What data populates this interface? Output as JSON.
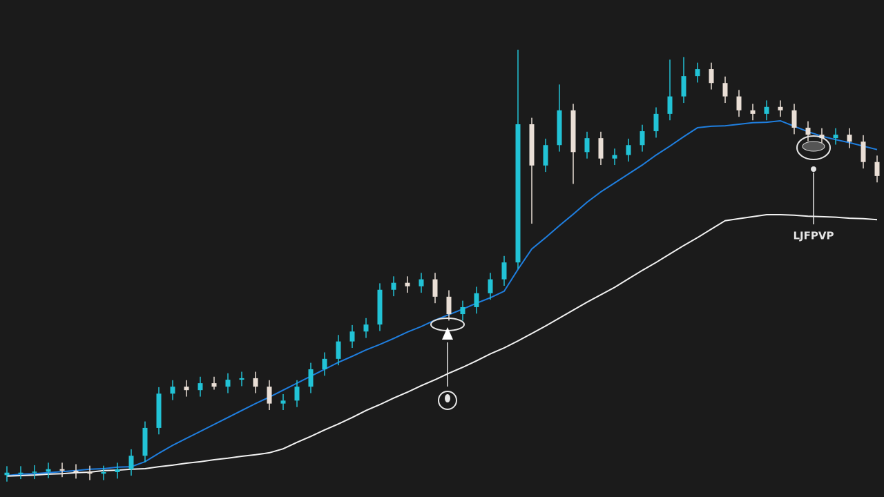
{
  "chart_data": {
    "type": "candlestick",
    "up_color": "#22c3d6",
    "down_color": "#eadfd6",
    "ylim": [
      0,
      100
    ],
    "open": [
      4.4,
      4.9,
      4.9,
      5.1,
      5.6,
      5.3,
      5.0,
      4.7,
      5.0,
      5.6,
      8.3,
      13.9,
      20.8,
      22.2,
      21.5,
      22.9,
      22.2,
      23.6,
      23.9,
      22.2,
      18.8,
      19.4,
      22.2,
      25.7,
      27.8,
      31.3,
      33.3,
      34.7,
      41.7,
      43.1,
      42.4,
      43.8,
      40.3,
      36.8,
      38.2,
      41.0,
      43.8,
      47.2,
      75.0,
      66.7,
      70.8,
      77.8,
      69.4,
      72.2,
      68.1,
      68.8,
      70.8,
      73.6,
      77.1,
      80.6,
      84.7,
      86.1,
      83.3,
      80.6,
      77.8,
      77.1,
      78.5,
      77.8,
      74.3,
      72.9,
      72.2,
      72.9,
      71.5,
      67.4
    ],
    "high": [
      6.2,
      6.2,
      6.4,
      6.9,
      6.9,
      6.6,
      6.3,
      6.3,
      6.9,
      9.6,
      15.2,
      22.1,
      23.5,
      23.5,
      24.2,
      24.2,
      24.9,
      25.2,
      25.2,
      23.5,
      20.7,
      23.5,
      27.0,
      29.1,
      32.6,
      34.6,
      36.0,
      43.0,
      44.4,
      44.4,
      45.1,
      45.1,
      41.6,
      39.5,
      42.3,
      45.1,
      48.5,
      90.0,
      76.3,
      72.1,
      83.0,
      79.1,
      73.5,
      73.5,
      70.1,
      72.1,
      74.9,
      78.4,
      88.0,
      88.5,
      87.4,
      87.4,
      84.6,
      81.9,
      79.1,
      79.8,
      79.8,
      79.1,
      75.6,
      74.2,
      74.2,
      74.2,
      72.8,
      68.7
    ],
    "low": [
      3.1,
      3.6,
      3.6,
      3.8,
      4.0,
      3.7,
      3.4,
      3.4,
      3.7,
      4.3,
      7.0,
      12.6,
      19.5,
      20.2,
      20.2,
      21.6,
      20.9,
      22.3,
      20.9,
      17.5,
      17.5,
      18.1,
      20.9,
      24.4,
      26.5,
      30.0,
      32.0,
      33.4,
      40.4,
      41.1,
      41.1,
      39.0,
      35.5,
      35.5,
      36.9,
      39.7,
      42.5,
      45.9,
      55.0,
      65.4,
      69.5,
      63.0,
      68.1,
      66.8,
      66.8,
      67.5,
      69.5,
      72.3,
      75.8,
      79.3,
      83.4,
      82.0,
      79.3,
      76.5,
      75.8,
      75.8,
      76.5,
      73.0,
      71.6,
      70.9,
      70.9,
      70.2,
      66.1,
      63.3
    ],
    "close": [
      4.9,
      4.9,
      5.1,
      5.6,
      5.3,
      5.0,
      4.7,
      5.0,
      5.6,
      8.3,
      13.9,
      20.8,
      22.2,
      21.5,
      22.9,
      22.2,
      23.6,
      23.9,
      22.2,
      18.8,
      19.4,
      22.2,
      25.7,
      27.8,
      31.3,
      33.3,
      34.7,
      41.7,
      43.1,
      42.4,
      43.8,
      40.3,
      36.8,
      38.2,
      41.0,
      43.8,
      47.2,
      75.0,
      66.7,
      70.8,
      77.8,
      69.4,
      72.2,
      68.1,
      68.8,
      70.8,
      73.6,
      77.1,
      80.6,
      84.7,
      86.1,
      83.3,
      80.6,
      77.8,
      77.1,
      78.5,
      77.8,
      74.3,
      72.9,
      72.2,
      72.9,
      71.5,
      67.4,
      64.6
    ],
    "lines": [
      {
        "color": "#1f7fe0",
        "values": [
          4.3,
          4.6,
          4.7,
          4.9,
          5.1,
          5.3,
          5.6,
          5.7,
          6.0,
          6.1,
          7.1,
          8.8,
          10.4,
          11.8,
          13.2,
          14.6,
          16.0,
          17.4,
          18.8,
          20.1,
          21.5,
          22.9,
          24.3,
          25.7,
          27.1,
          28.3,
          29.6,
          30.7,
          31.9,
          33.2,
          34.3,
          35.6,
          36.7,
          37.8,
          39.0,
          40.1,
          41.4,
          45.8,
          49.9,
          52.2,
          54.6,
          56.9,
          59.3,
          61.4,
          63.2,
          65.0,
          66.8,
          68.8,
          70.6,
          72.5,
          74.3,
          74.6,
          74.7,
          75.0,
          75.3,
          75.4,
          75.7,
          74.6,
          73.5,
          72.6,
          71.9,
          71.3,
          70.6,
          69.9
        ]
      },
      {
        "color": "#f2f2f2",
        "values": [
          4.2,
          4.3,
          4.4,
          4.6,
          4.7,
          4.9,
          5.0,
          5.3,
          5.4,
          5.6,
          5.7,
          6.1,
          6.4,
          6.8,
          7.1,
          7.5,
          7.8,
          8.2,
          8.5,
          8.9,
          9.7,
          11.0,
          12.2,
          13.5,
          14.7,
          16.0,
          17.4,
          18.6,
          19.9,
          21.1,
          22.4,
          23.6,
          24.9,
          26.1,
          27.4,
          28.8,
          30.0,
          31.4,
          32.9,
          34.4,
          36.0,
          37.6,
          39.2,
          40.7,
          42.2,
          43.9,
          45.6,
          47.2,
          48.9,
          50.6,
          52.2,
          53.9,
          55.6,
          56.0,
          56.4,
          56.8,
          56.8,
          56.7,
          56.5,
          56.4,
          56.3,
          56.1,
          56.0,
          55.8
        ]
      }
    ],
    "annotation": "LJFPVP"
  }
}
